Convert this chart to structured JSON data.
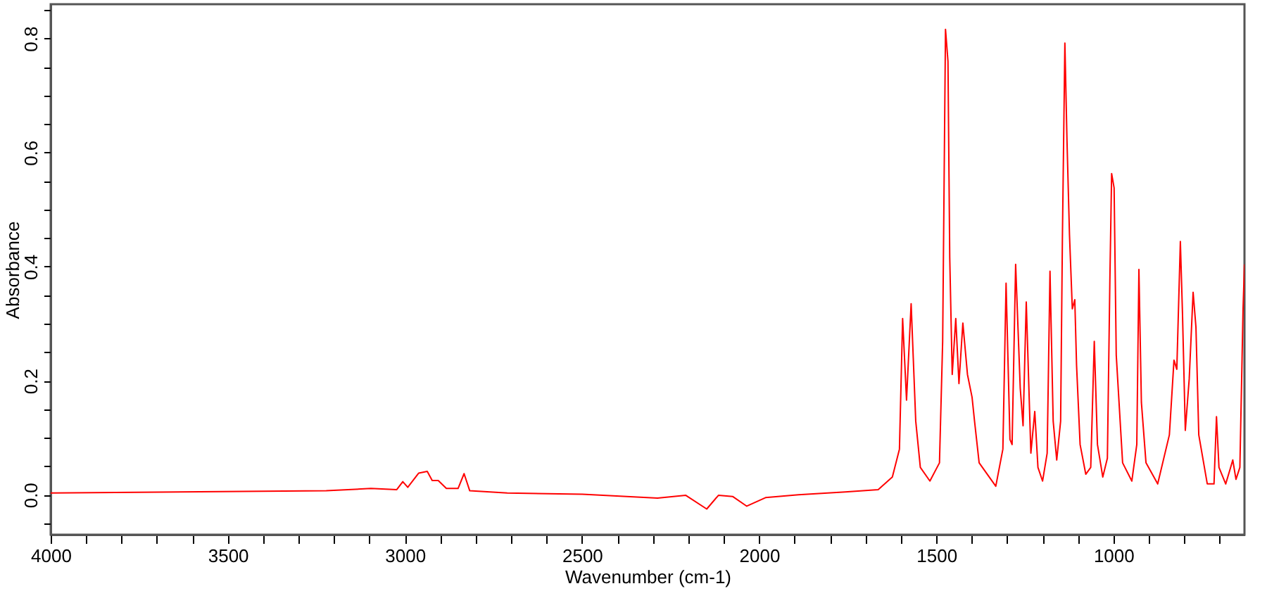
{
  "chart_data": {
    "type": "line",
    "xlabel": "Wavenumber (cm-1)",
    "ylabel": "Absorbance",
    "xlim": [
      4000,
      630
    ],
    "ylim": [
      -0.07,
      0.86
    ],
    "xticks": [
      4000,
      {
        "value": 3900,
        "label": null
      },
      {
        "value": 3800,
        "label": null
      },
      {
        "value": 3700,
        "label": null
      },
      {
        "value": 3600,
        "label": null
      },
      3500,
      {
        "value": 3400,
        "label": null
      },
      {
        "value": 3300,
        "label": null
      },
      {
        "value": 3200,
        "label": null
      },
      {
        "value": 3100,
        "label": null
      },
      3000,
      {
        "value": 2900,
        "label": null
      },
      {
        "value": 2800,
        "label": null
      },
      {
        "value": 2700,
        "label": null
      },
      {
        "value": 2600,
        "label": null
      },
      2500,
      {
        "value": 2400,
        "label": null
      },
      {
        "value": 2300,
        "label": null
      },
      {
        "value": 2200,
        "label": null
      },
      {
        "value": 2100,
        "label": null
      },
      2000,
      {
        "value": 1900,
        "label": null
      },
      {
        "value": 1800,
        "label": null
      },
      {
        "value": 1700,
        "label": null
      },
      {
        "value": 1600,
        "label": null
      },
      1500,
      {
        "value": 1400,
        "label": null
      },
      {
        "value": 1300,
        "label": null
      },
      {
        "value": 1200,
        "label": null
      },
      {
        "value": 1100,
        "label": null
      },
      1000,
      {
        "value": 900,
        "label": null
      },
      {
        "value": 800,
        "label": null
      },
      {
        "value": 700,
        "label": null
      }
    ],
    "yticks": [
      {
        "value": -0.05,
        "label": null
      },
      {
        "value": 0,
        "label": "0.0"
      },
      {
        "value": 0.05,
        "label": null
      },
      {
        "value": 0.1,
        "label": null
      },
      {
        "value": 0.15,
        "label": null
      },
      0.2,
      {
        "value": 0.25,
        "label": null
      },
      {
        "value": 0.3,
        "label": null
      },
      {
        "value": 0.35,
        "label": null
      },
      0.4,
      {
        "value": 0.45,
        "label": null
      },
      {
        "value": 0.5,
        "label": null
      },
      {
        "value": 0.55,
        "label": null
      },
      0.6,
      {
        "value": 0.65,
        "label": null
      },
      {
        "value": 0.7,
        "label": null
      },
      {
        "value": 0.75,
        "label": null
      },
      0.8,
      {
        "value": 0.85,
        "label": null
      }
    ],
    "grid": false,
    "marker": "none",
    "line_style": "solid",
    "series": [
      {
        "color": "#ff0000",
        "x": [
          4000,
          3222,
          3096,
          3023,
          3006,
          2992,
          2961,
          2937,
          2923,
          2906,
          2883,
          2850,
          2833,
          2817,
          2711,
          2499,
          2287,
          2207,
          2148,
          2115,
          2075,
          2035,
          1982,
          1889,
          1757,
          1664,
          1624,
          1604,
          1595,
          1584,
          1571,
          1558,
          1545,
          1518,
          1491,
          1482,
          1474,
          1467,
          1462,
          1455,
          1445,
          1436,
          1425,
          1412,
          1399,
          1392,
          1379,
          1332,
          1312,
          1303,
          1292,
          1286,
          1276,
          1263,
          1255,
          1246,
          1233,
          1222,
          1213,
          1200,
          1187,
          1179,
          1170,
          1160,
          1149,
          1144,
          1137,
          1131,
          1124,
          1116,
          1109,
          1104,
          1094,
          1078,
          1064,
          1054,
          1045,
          1030,
          1017,
          1010,
          1005,
          998,
          992,
          974,
          948,
          934,
          928,
          921,
          908,
          875,
          842,
          829,
          821,
          811,
          805,
          797,
          786,
          775,
          767,
          759,
          735,
          716,
          709,
          702,
          683,
          669,
          663,
          654,
          643,
          634,
          630
        ],
        "values": [
          0.003,
          0.007,
          0.011,
          0.009,
          0.023,
          0.013,
          0.038,
          0.041,
          0.025,
          0.025,
          0.011,
          0.011,
          0.037,
          0.007,
          0.003,
          0.001,
          -0.006,
          -0.001,
          -0.025,
          -0.001,
          -0.003,
          -0.02,
          -0.005,
          0.0,
          0.005,
          0.009,
          0.031,
          0.08,
          0.309,
          0.166,
          0.335,
          0.129,
          0.048,
          0.024,
          0.056,
          0.269,
          0.816,
          0.76,
          0.416,
          0.211,
          0.309,
          0.195,
          0.301,
          0.211,
          0.171,
          0.129,
          0.056,
          0.015,
          0.08,
          0.371,
          0.097,
          0.088,
          0.404,
          0.187,
          0.121,
          0.338,
          0.073,
          0.146,
          0.048,
          0.024,
          0.073,
          0.392,
          0.129,
          0.061,
          0.129,
          0.448,
          0.792,
          0.62,
          0.456,
          0.326,
          0.342,
          0.227,
          0.088,
          0.036,
          0.048,
          0.269,
          0.088,
          0.031,
          0.064,
          0.375,
          0.563,
          0.538,
          0.245,
          0.056,
          0.024,
          0.088,
          0.395,
          0.162,
          0.056,
          0.019,
          0.105,
          0.236,
          0.22,
          0.444,
          0.318,
          0.113,
          0.203,
          0.355,
          0.294,
          0.105,
          0.019,
          0.019,
          0.137,
          0.048,
          0.019,
          0.048,
          0.061,
          0.027,
          0.048,
          0.326,
          0.404
        ]
      }
    ]
  }
}
